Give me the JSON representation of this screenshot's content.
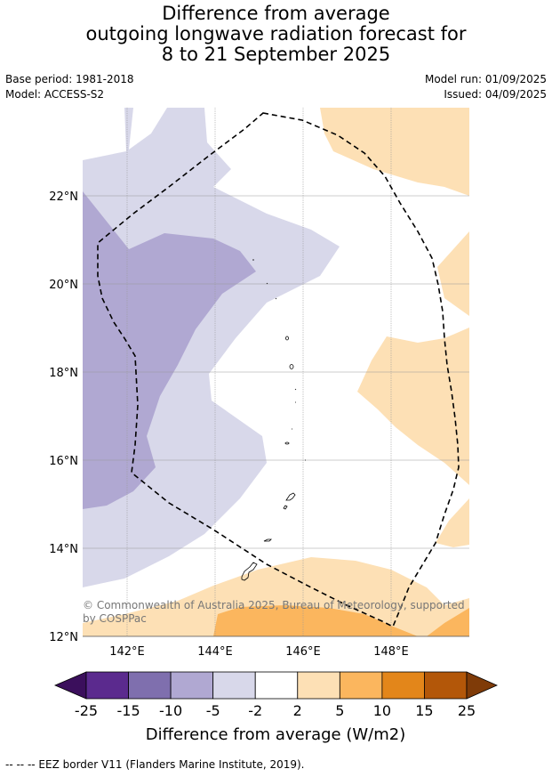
{
  "title": {
    "line1": "Difference from average",
    "line2": "outgoing longwave radiation forecast for",
    "line3": "8 to 21 September 2025"
  },
  "meta": {
    "base_period": "Base period: 1981-2018",
    "model": "Model: ACCESS-S2",
    "model_run": "Model run: 01/09/2025",
    "issued": "Issued: 04/09/2025"
  },
  "map": {
    "extent": {
      "lon_min": 141.0,
      "lon_max": 149.7,
      "lat_min": 12.0,
      "lat_max": 24.0
    },
    "lat_ticks": [
      {
        "value": 22,
        "label": "22°N"
      },
      {
        "value": 20,
        "label": "20°N"
      },
      {
        "value": 18,
        "label": "18°N"
      },
      {
        "value": 16,
        "label": "16°N"
      },
      {
        "value": 14,
        "label": "14°N"
      },
      {
        "value": 12,
        "label": "12°N"
      }
    ],
    "lon_ticks": [
      {
        "value": 142,
        "label": "142°E"
      },
      {
        "value": 144,
        "label": "144°E"
      },
      {
        "value": 146,
        "label": "146°E"
      },
      {
        "value": 148,
        "label": "148°E"
      }
    ],
    "copyright": "© Commonwealth of Australia 2025, Bureau of Meteorology, supported by COSPPac"
  },
  "colorbar": {
    "label": "Difference from average (W/m2)",
    "ticks": [
      "-25",
      "-15",
      "-10",
      "-5",
      "-2",
      "2",
      "5",
      "10",
      "15",
      "25"
    ],
    "colors": [
      "#5b2a8e",
      "#7f6fae",
      "#b0a8d2",
      "#d8d8ea",
      "#ffffff",
      "#fde0b5",
      "#fbb65e",
      "#e3861a",
      "#b35709"
    ],
    "under_color": "#3b0f5c",
    "over_color": "#7f3b08"
  },
  "footer": {
    "legend_text": "-- -- -- EEZ border V11 (Flanders Marine Institute, 2019)."
  }
}
